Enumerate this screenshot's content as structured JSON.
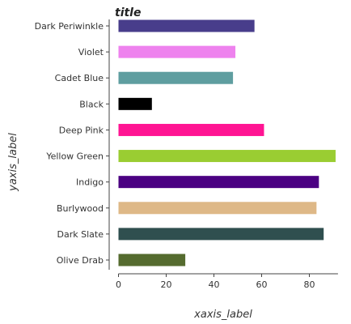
{
  "chart_data": {
    "type": "bar",
    "orientation": "horizontal",
    "title": "title",
    "xlabel": "xaxis_label",
    "ylabel": "yaxis_label",
    "xlim": [
      0,
      92
    ],
    "xticks": [
      0,
      20,
      40,
      60,
      80
    ],
    "grid": false,
    "categories": [
      "Olive Drab",
      "Dark Slate",
      "Burlywood",
      "Indigo",
      "Yellow Green",
      "Deep Pink",
      "Black",
      "Cadet Blue",
      "Violet",
      "Dark Periwinkle"
    ],
    "values": [
      28,
      86,
      83,
      84,
      91,
      61,
      14,
      48,
      49,
      57
    ],
    "colors": [
      "#556b2f",
      "#2f4f4f",
      "#deb887",
      "#4b0082",
      "#9acd32",
      "#ff1493",
      "#000000",
      "#5f9ea0",
      "#ee82ee",
      "#483d8b"
    ]
  }
}
